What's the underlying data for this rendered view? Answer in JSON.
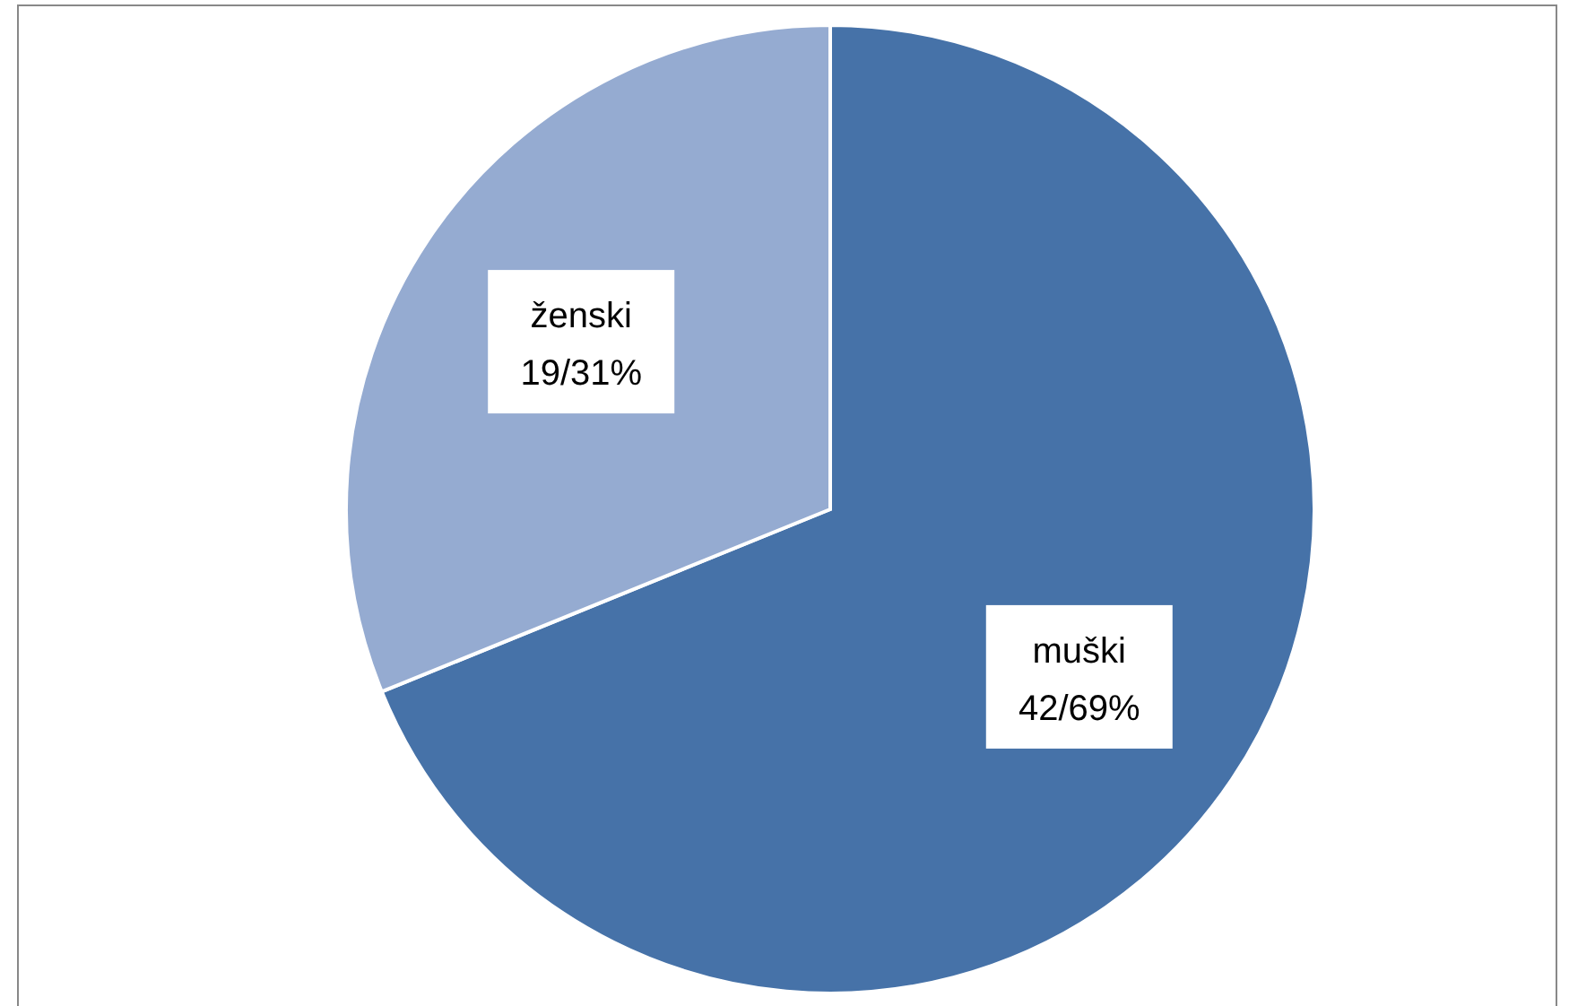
{
  "chart_data": {
    "type": "pie",
    "categories": [
      "muški",
      "ženski"
    ],
    "values": [
      42,
      19
    ],
    "colors": [
      "#4672a8",
      "#95abd1"
    ],
    "value_labels": [
      "42/69%",
      "19/31%"
    ]
  }
}
